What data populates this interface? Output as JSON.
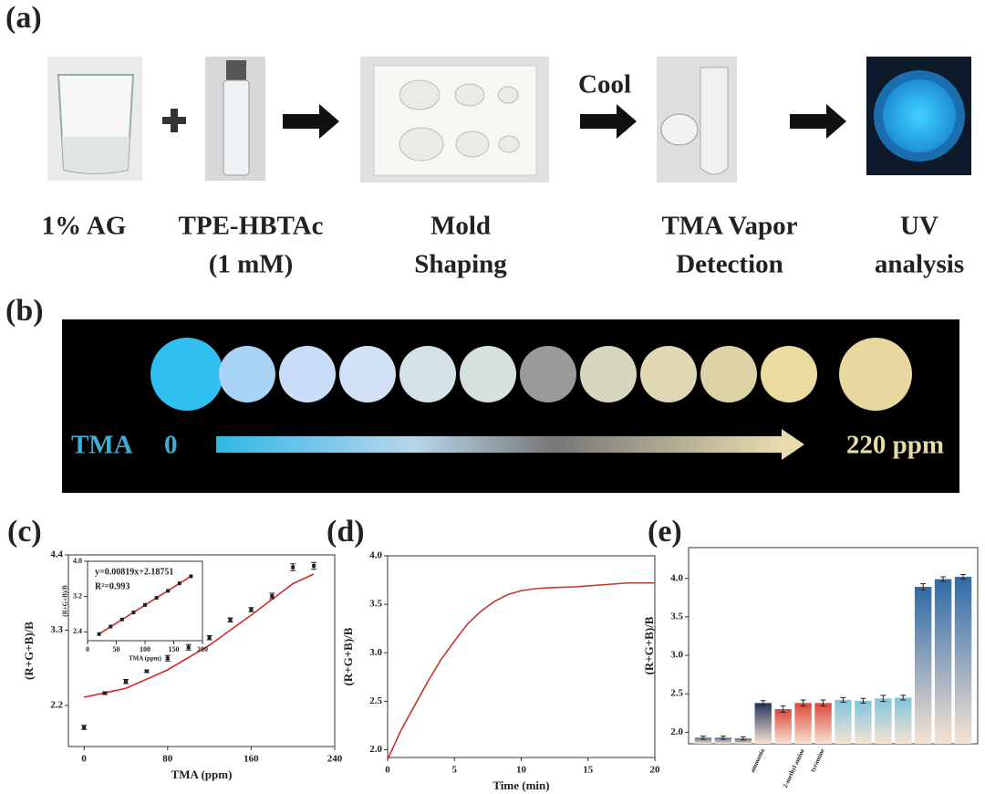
{
  "panel_a": {
    "letter": "(a)",
    "cool": "Cool",
    "steps": [
      {
        "label": [
          "1% AG"
        ]
      },
      {
        "label": [
          "TPE-HBTAc",
          "(1 mM)"
        ]
      },
      {
        "label": [
          "Mold",
          "Shaping"
        ]
      },
      {
        "label": [
          "TMA Vapor",
          "Detection"
        ]
      },
      {
        "label": [
          "UV",
          "analysis"
        ]
      }
    ]
  },
  "panel_b": {
    "letter": "(b)",
    "scale_start": "TMA",
    "scale_zero": "0",
    "scale_end": "220 ppm"
  },
  "chart_data": [
    {
      "panel": "(c)",
      "type": "scatter",
      "x_label": "TMA (ppm)",
      "y_label": "(R+G+B)/B",
      "x": [
        0,
        20,
        40,
        60,
        80,
        100,
        120,
        140,
        160,
        180,
        200,
        220
      ],
      "values": [
        1.88,
        2.38,
        2.55,
        2.7,
        2.89,
        3.05,
        3.19,
        3.45,
        3.6,
        3.8,
        4.22,
        4.24
      ],
      "errors": [
        0.03,
        0.02,
        0.03,
        0.02,
        0.04,
        0.04,
        0.03,
        0.03,
        0.03,
        0.04,
        0.05,
        0.05
      ],
      "color": "#222222",
      "fit": {
        "x": [
          0,
          40,
          80,
          120,
          160,
          200,
          220
        ],
        "values": [
          2.32,
          2.45,
          2.72,
          3.08,
          3.52,
          3.98,
          4.12
        ],
        "color": "#d62728"
      },
      "xlim": [
        -15,
        240
      ],
      "ylim": [
        1.6,
        4.4
      ],
      "xticks": [
        0,
        80,
        160,
        240
      ],
      "yticks": [
        2.2,
        3.3,
        4.4
      ]
    },
    {
      "panel": "(c) inset",
      "type": "scatter",
      "x_label": "TMA (ppm)",
      "y_label": "(R+G+B)/B",
      "equation": "y=0.00819x+2.18751",
      "r_squared": "R²=0.993",
      "x": [
        20,
        40,
        60,
        80,
        100,
        120,
        140,
        160,
        180
      ],
      "values": [
        2.35,
        2.52,
        2.68,
        2.84,
        3.01,
        3.17,
        3.33,
        3.5,
        3.66
      ],
      "color": "#222222",
      "fit": {
        "x": [
          20,
          180
        ],
        "values": [
          2.351,
          3.662
        ],
        "color": "#d62728"
      },
      "xlim": [
        0,
        200
      ],
      "ylim": [
        2.2,
        4.0
      ],
      "xticks": [
        0,
        50,
        100,
        150,
        200
      ],
      "yticks": [
        2.4,
        3.2,
        {
          "value": 4,
          "label": "4.0"
        }
      ]
    },
    {
      "panel": "(d)",
      "type": "line",
      "x_label": "Time (min)",
      "y_label": "(R+G+B)/B",
      "x": [
        0,
        1,
        2,
        3,
        4,
        5,
        6,
        7,
        8,
        9,
        10,
        11,
        12,
        14,
        16,
        18,
        20
      ],
      "values": [
        1.9,
        2.2,
        2.45,
        2.7,
        2.93,
        3.12,
        3.3,
        3.43,
        3.53,
        3.6,
        3.64,
        3.66,
        3.67,
        3.68,
        3.7,
        3.72,
        3.72
      ],
      "color": "#c0392b",
      "xlim": [
        0,
        20
      ],
      "ylim": [
        1.92,
        4.0
      ],
      "xticks": [
        0,
        5,
        10,
        15,
        20
      ],
      "yticks": [
        {
          "value": 2,
          "label": "2.0"
        },
        2.5,
        {
          "value": 3,
          "label": "3.0"
        },
        3.5,
        {
          "value": 4,
          "label": "4.0"
        }
      ]
    },
    {
      "panel": "(e)",
      "type": "bar",
      "y_label": "(R+G+B)/B",
      "categories": [
        null,
        null,
        null,
        "ammonia",
        null,
        "2-methyl amine",
        "tyramine",
        null,
        null,
        null,
        null,
        null,
        null,
        null
      ],
      "values": [
        1.93,
        1.93,
        1.92,
        2.38,
        2.3,
        2.38,
        2.38,
        2.42,
        2.41,
        2.44,
        2.45,
        3.89,
        3.99,
        4.02
      ],
      "errors": [
        0.02,
        0.02,
        0.02,
        0.03,
        0.04,
        0.04,
        0.04,
        0.03,
        0.03,
        0.04,
        0.03,
        0.04,
        0.03,
        0.03
      ],
      "colors": [
        "#5a6a86",
        "#5a6a86",
        "#5a6a86",
        "#23345e",
        "#d9483b",
        "#d9483b",
        "#d9483b",
        "#7fc4dc",
        "#7fc4dc",
        "#7fc4dc",
        "#7fc4dc",
        "#2f6aa8",
        "#2f6aa8",
        "#2f6aa8"
      ],
      "ylim": [
        1.85,
        4.4
      ],
      "yticks": [
        {
          "value": 2,
          "label": "2.0"
        },
        2.5,
        {
          "value": 3,
          "label": "3.0"
        },
        3.5,
        {
          "value": 4,
          "label": "4.0"
        }
      ]
    }
  ]
}
